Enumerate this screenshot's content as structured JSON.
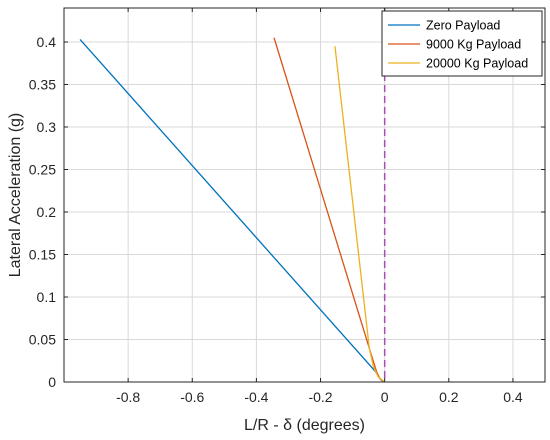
{
  "chart_data": {
    "type": "line",
    "xlabel": "L/R - δ (degrees)",
    "ylabel": "Lateral Acceleration (g)",
    "xlim": [
      -1.0,
      0.5
    ],
    "ylim": [
      0,
      0.44
    ],
    "xticks": [
      -0.8,
      -0.6,
      -0.4,
      -0.2,
      0,
      0.2,
      0.4
    ],
    "yticks": [
      0,
      0.05,
      0.1,
      0.15,
      0.2,
      0.25,
      0.3,
      0.35,
      0.4
    ],
    "xtick_labels": [
      "-0.8",
      "-0.6",
      "-0.4",
      "-0.2",
      "0",
      "0.2",
      "0.4"
    ],
    "ytick_labels": [
      "0",
      "0.05",
      "0.1",
      "0.15",
      "0.2",
      "0.25",
      "0.3",
      "0.35",
      "0.4"
    ],
    "grid": true,
    "legend_position": "top-right",
    "series": [
      {
        "name": "Zero Payload",
        "color": "#0072BD",
        "x": [
          -0.95,
          -0.028,
          -0.018,
          -0.01,
          0
        ],
        "y": [
          0.403,
          0.012,
          0.006,
          0.002,
          0
        ]
      },
      {
        "name": "9000 Kg Payload",
        "color": "#D95319",
        "x": [
          -0.345,
          -0.04,
          -0.025,
          -0.015,
          0
        ],
        "y": [
          0.405,
          0.03,
          0.012,
          0.004,
          0
        ]
      },
      {
        "name": "20000 Kg Payload",
        "color": "#EDB120",
        "x": [
          -0.155,
          -0.048,
          -0.035,
          -0.02,
          0
        ],
        "y": [
          0.395,
          0.04,
          0.018,
          0.006,
          0
        ]
      }
    ],
    "reference_line": {
      "x": 0,
      "color": "#A94BB8",
      "style": "dashed"
    }
  }
}
